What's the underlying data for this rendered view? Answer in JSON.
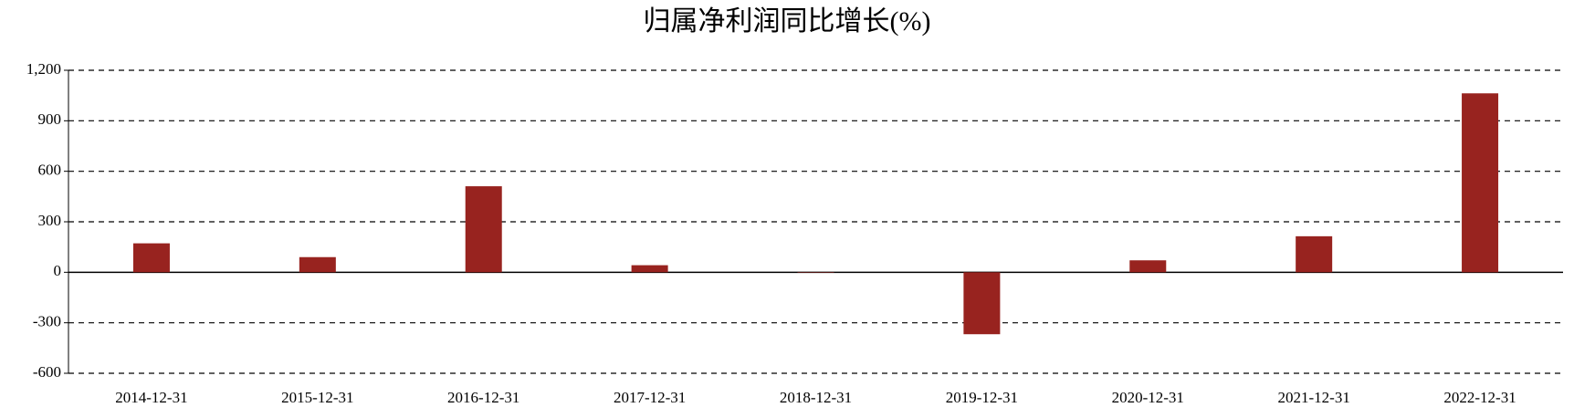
{
  "chart_data": {
    "type": "bar",
    "title": "归属净利润同比增长(%)",
    "categories": [
      "2014-12-31",
      "2015-12-31",
      "2016-12-31",
      "2017-12-31",
      "2018-12-31",
      "2019-12-31",
      "2020-12-31",
      "2021-12-31",
      "2022-12-31"
    ],
    "values": [
      172,
      90,
      511,
      42,
      -2,
      -368,
      71,
      214,
      1063
    ],
    "color": "#98231f",
    "ylim": [
      -600,
      1200
    ],
    "yticks": [
      -600,
      -300,
      0,
      300,
      600,
      900,
      {
        "value": 1200,
        "label": "1,200"
      }
    ],
    "grid": true
  }
}
